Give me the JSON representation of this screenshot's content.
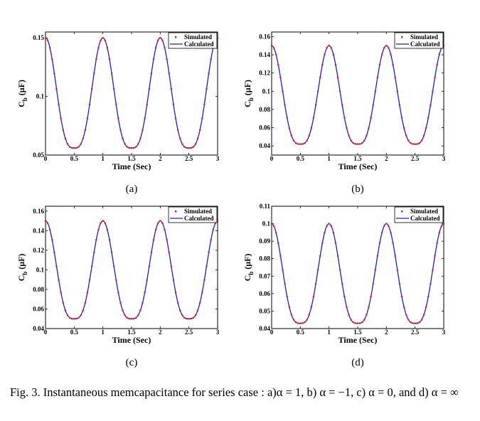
{
  "caption": "Fig. 3.   Instantaneous memcapacitance for series case : a)α = 1, b) α = −1, c) α = 0, and d) α = ∞",
  "chart_data": [
    {
      "type": "line",
      "panel_label": "(a)",
      "xlabel": "Time (Sec)",
      "ylabel": "C_b (μF)",
      "xlim": [
        0,
        3
      ],
      "ylim": [
        0.05,
        0.155
      ],
      "xticks": [
        0,
        0.5,
        1,
        1.5,
        2,
        2.5,
        3
      ],
      "xtick_labels": [
        "0",
        "0.5",
        "1",
        "1.5",
        "2",
        "2.5",
        "3"
      ],
      "yticks": [
        0.05,
        0.1,
        0.15
      ],
      "ytick_labels": [
        "0.05",
        "0.1",
        "0.15"
      ],
      "legend_position": "top-right",
      "max": 0.15,
      "min": 0.056,
      "period": 1,
      "series": [
        {
          "name": "Simulated",
          "style": "markers",
          "color": "#e8141c"
        },
        {
          "name": "Calculated",
          "style": "line",
          "color": "#1f1fbf"
        }
      ]
    },
    {
      "type": "line",
      "panel_label": "(b)",
      "xlabel": "Time (Sec)",
      "ylabel": "C_b (μF)",
      "xlim": [
        0,
        3
      ],
      "ylim": [
        0.03,
        0.165
      ],
      "xticks": [
        0,
        0.5,
        1,
        1.5,
        2,
        2.5,
        3
      ],
      "xtick_labels": [
        "0",
        "0.5",
        "1",
        "1.5",
        "2",
        "2.5",
        "3"
      ],
      "yticks": [
        0.04,
        0.06,
        0.08,
        0.1,
        0.12,
        0.14,
        0.16
      ],
      "ytick_labels": [
        "0.04",
        "0.06",
        "0.08",
        "0.1",
        "0.12",
        "0.14",
        "0.16"
      ],
      "legend_position": "top-right",
      "max": 0.15,
      "min": 0.042,
      "period": 1,
      "series": [
        {
          "name": "Simulated",
          "style": "markers",
          "color": "#e8141c"
        },
        {
          "name": "Calculated",
          "style": "line",
          "color": "#1f1fbf"
        }
      ]
    },
    {
      "type": "line",
      "panel_label": "(c)",
      "xlabel": "Time (Sec)",
      "ylabel": "C_b (μF)",
      "xlim": [
        0,
        3
      ],
      "ylim": [
        0.04,
        0.165
      ],
      "xticks": [
        0,
        0.5,
        1,
        1.5,
        2,
        2.5,
        3
      ],
      "xtick_labels": [
        "0",
        "0.5",
        "1",
        "1.5",
        "2",
        "2.5",
        "3"
      ],
      "yticks": [
        0.04,
        0.06,
        0.08,
        0.1,
        0.12,
        0.14,
        0.16
      ],
      "ytick_labels": [
        "0.04",
        "0.06",
        "0.08",
        "0.1",
        "0.12",
        "0.14",
        "0.16"
      ],
      "legend_position": "top-right",
      "max": 0.15,
      "min": 0.05,
      "period": 1,
      "series": [
        {
          "name": "Simulated",
          "style": "markers",
          "color": "#e8141c"
        },
        {
          "name": "Calculated",
          "style": "line",
          "color": "#1f1fbf"
        }
      ]
    },
    {
      "type": "line",
      "panel_label": "(d)",
      "xlabel": "Time (Sec)",
      "ylabel": "C_b (μF)",
      "xlim": [
        0,
        3
      ],
      "ylim": [
        0.04,
        0.11
      ],
      "xticks": [
        0,
        0.5,
        1,
        1.5,
        2,
        2.5,
        3
      ],
      "xtick_labels": [
        "0",
        "0.5",
        "1",
        "1.5",
        "2",
        "2.5",
        "3"
      ],
      "yticks": [
        0.04,
        0.05,
        0.06,
        0.07,
        0.08,
        0.09,
        0.1,
        0.11
      ],
      "ytick_labels": [
        "0.04",
        "0.05",
        "0.06",
        "0.07",
        "0.08",
        "0.09",
        "0.1",
        "0.11"
      ],
      "legend_position": "top-right",
      "max": 0.1,
      "min": 0.043,
      "period": 1,
      "series": [
        {
          "name": "Simulated",
          "style": "markers",
          "color": "#e8141c"
        },
        {
          "name": "Calculated",
          "style": "line",
          "color": "#1f1fbf"
        }
      ]
    }
  ]
}
